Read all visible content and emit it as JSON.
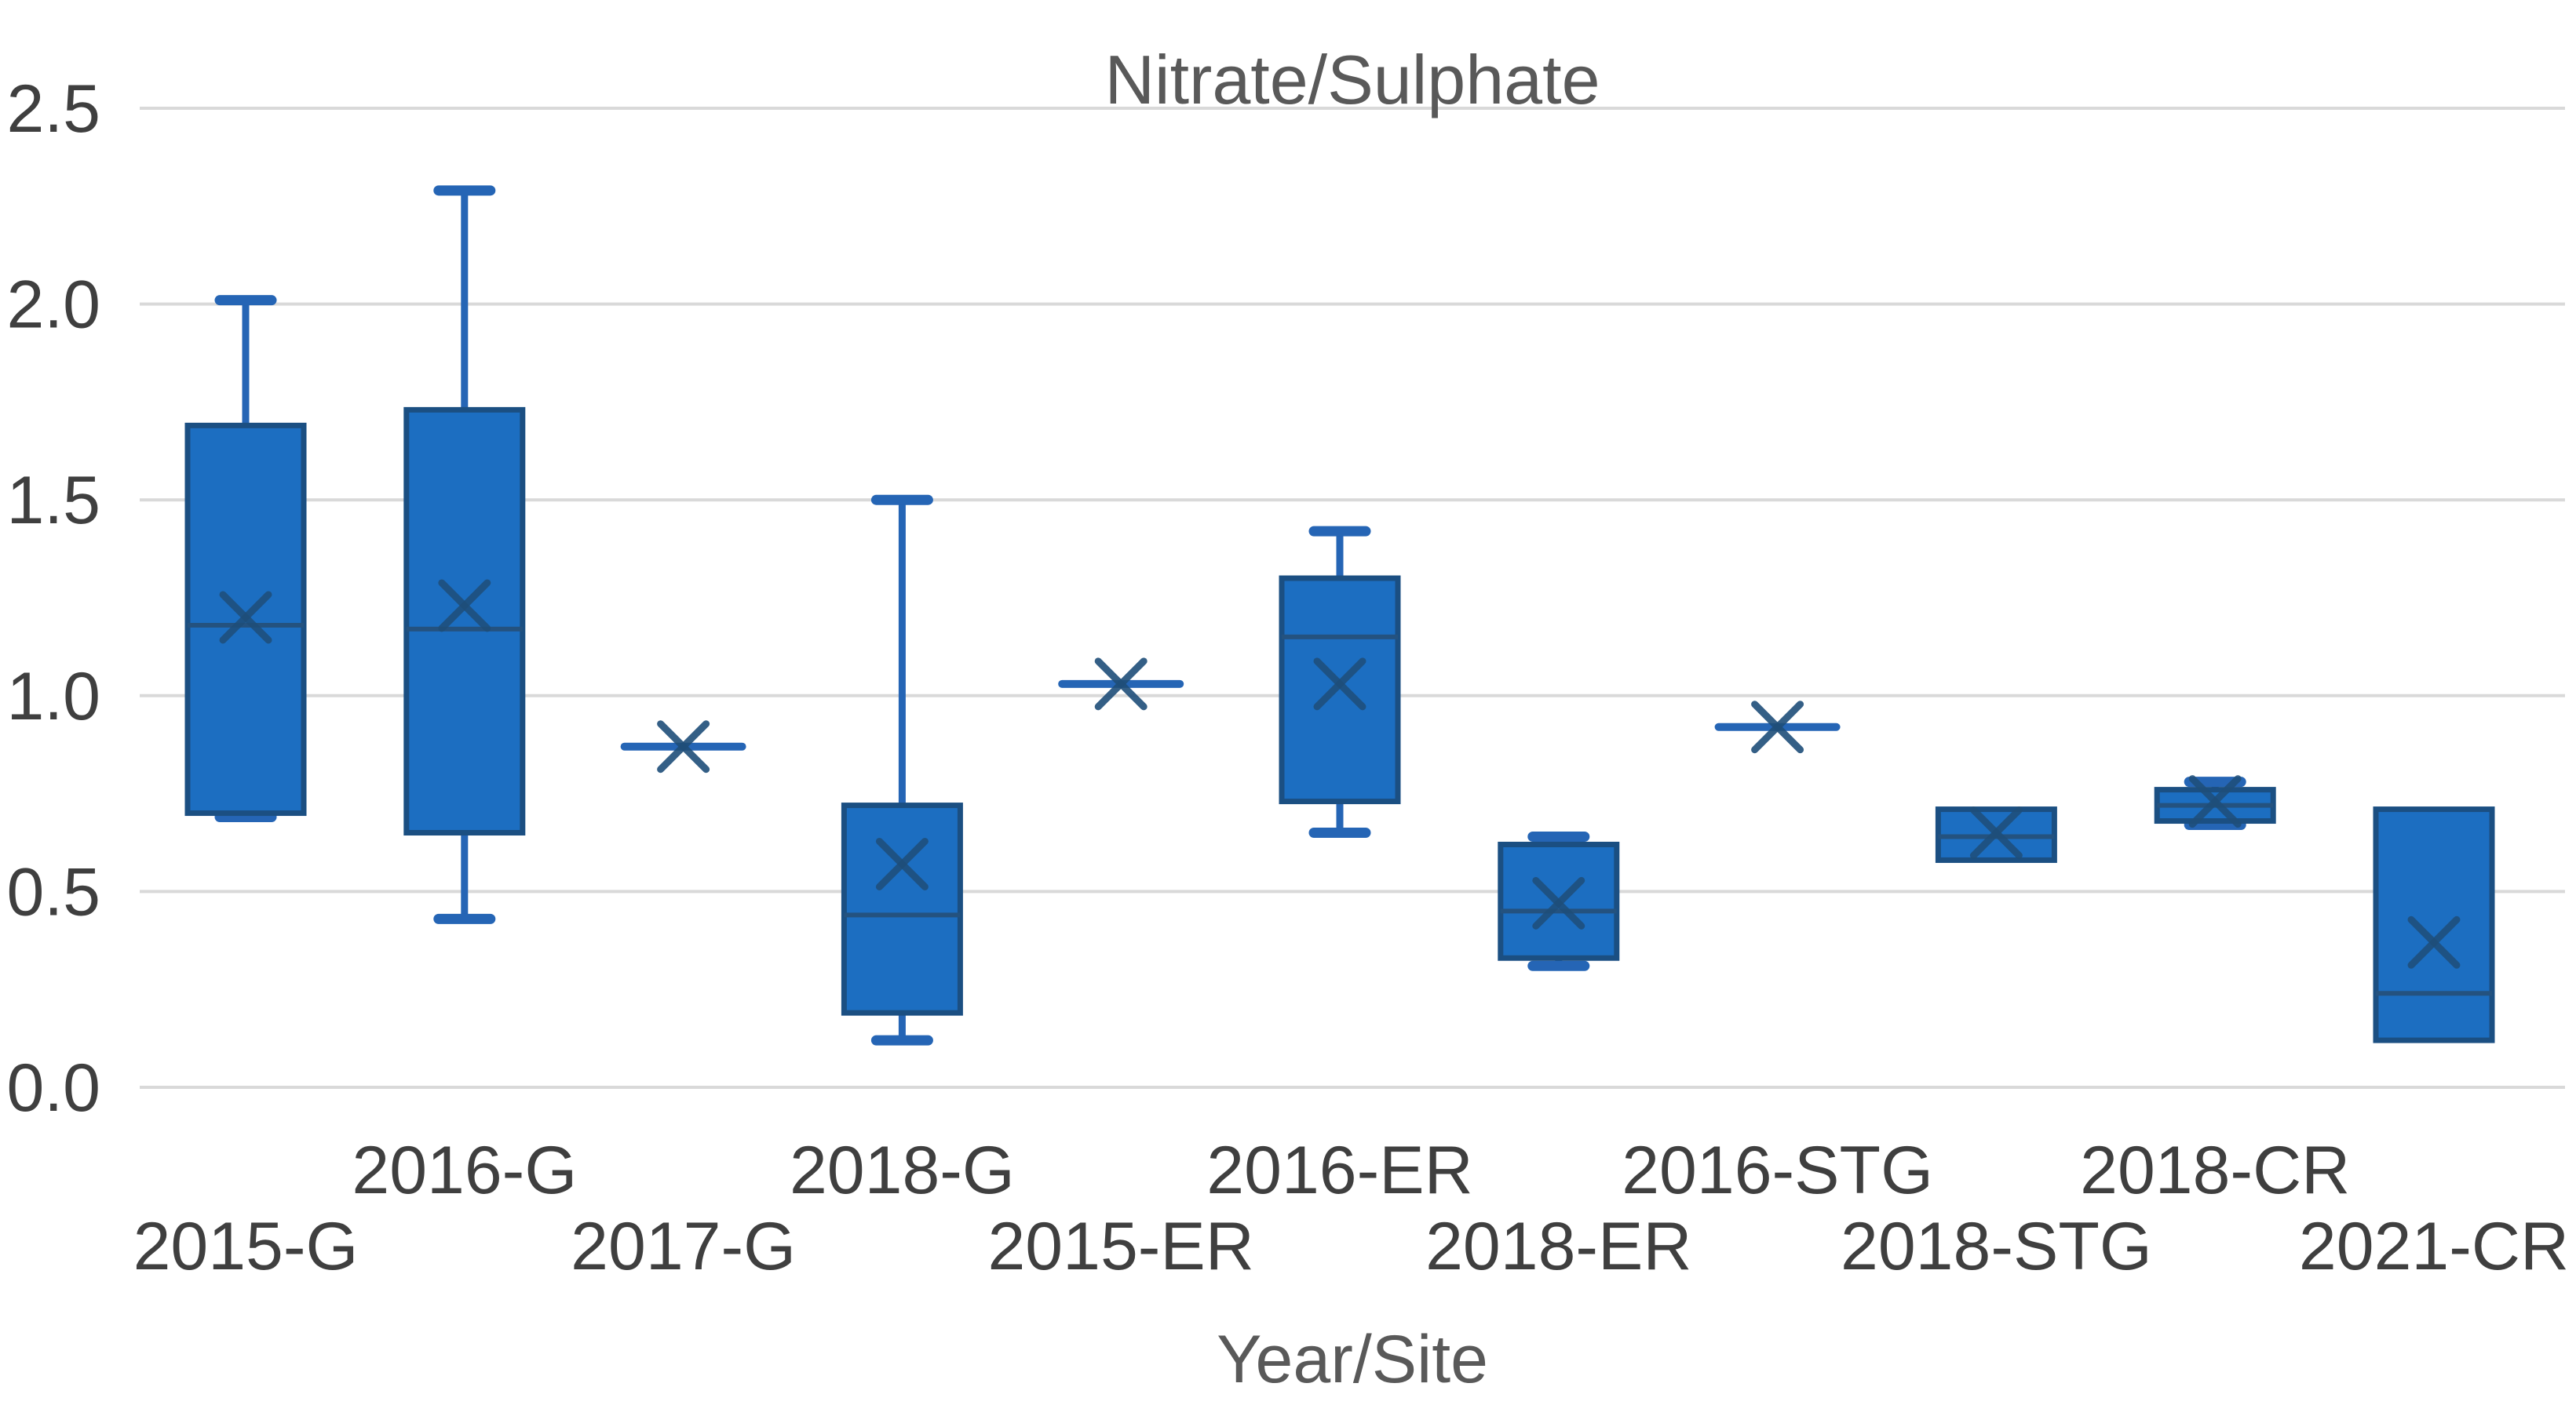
{
  "chart": {
    "title": "Nitrate/Sulphate",
    "x_axis_title": "Year/Site"
  },
  "colors": {
    "background": "#FFFFFF",
    "box_fill": "#1C6EC1",
    "box_border": "#1B4F82",
    "median_line": "#24527F",
    "whisker": "#2565B5",
    "mean_marker": "#1F4E79",
    "gridline": "#D9D9D9",
    "tick_label": "#3F3F3F",
    "title_text": "#595959"
  },
  "chart_data": {
    "type": "boxplot",
    "title": "Nitrate/Sulphate",
    "xlabel": "Year/Site",
    "ylabel": "",
    "ylim": [
      0,
      2.5
    ],
    "ytick_labels": [
      "0.0",
      "0.5",
      "1.0",
      "1.5",
      "2.0",
      "2.5"
    ],
    "grid": true,
    "legend": false,
    "mean_marker_style": "x",
    "categories": [
      "2015-G",
      "2016-G",
      "2017-G",
      "2018-G",
      "2015-ER",
      "2016-ER",
      "2018-ER",
      "2016-STG",
      "2018-STG",
      "2018-CR",
      "2021-CR"
    ],
    "series": [
      {
        "category": "2015-G",
        "min": 0.69,
        "q1": 0.7,
        "median": 1.18,
        "q3": 1.69,
        "max": 2.01,
        "mean": 1.2,
        "single_point": false
      },
      {
        "category": "2016-G",
        "min": 0.43,
        "q1": 0.65,
        "median": 1.17,
        "q3": 1.73,
        "max": 2.29,
        "mean": 1.23,
        "single_point": false
      },
      {
        "category": "2017-G",
        "min": 0.87,
        "q1": 0.87,
        "median": 0.87,
        "q3": 0.87,
        "max": 0.87,
        "mean": 0.87,
        "single_point": true
      },
      {
        "category": "2018-G",
        "min": 0.12,
        "q1": 0.19,
        "median": 0.44,
        "q3": 0.72,
        "max": 1.5,
        "mean": 0.57,
        "single_point": false
      },
      {
        "category": "2015-ER",
        "min": 1.03,
        "q1": 1.03,
        "median": 1.03,
        "q3": 1.03,
        "max": 1.03,
        "mean": 1.03,
        "single_point": true
      },
      {
        "category": "2016-ER",
        "min": 0.65,
        "q1": 0.73,
        "median": 1.15,
        "q3": 1.3,
        "max": 1.42,
        "mean": 1.03,
        "single_point": false
      },
      {
        "category": "2018-ER",
        "min": 0.31,
        "q1": 0.33,
        "median": 0.45,
        "q3": 0.62,
        "max": 0.64,
        "mean": 0.47,
        "single_point": false
      },
      {
        "category": "2016-STG",
        "min": 0.92,
        "q1": 0.92,
        "median": 0.92,
        "q3": 0.92,
        "max": 0.92,
        "mean": 0.92,
        "single_point": true
      },
      {
        "category": "2018-STG",
        "min": 0.58,
        "q1": 0.58,
        "median": 0.64,
        "q3": 0.71,
        "max": 0.71,
        "mean": 0.65,
        "single_point": false
      },
      {
        "category": "2018-CR",
        "min": 0.67,
        "q1": 0.68,
        "median": 0.72,
        "q3": 0.76,
        "max": 0.78,
        "mean": 0.73,
        "single_point": false
      },
      {
        "category": "2021-CR",
        "min": 0.12,
        "q1": 0.12,
        "median": 0.24,
        "q3": 0.71,
        "max": 0.71,
        "mean": 0.37,
        "single_point": false
      }
    ],
    "label_stagger": {
      "upper_row_indices": [
        1,
        3,
        5,
        7,
        9
      ],
      "lower_row_indices": [
        0,
        2,
        4,
        6,
        8,
        10
      ]
    }
  }
}
